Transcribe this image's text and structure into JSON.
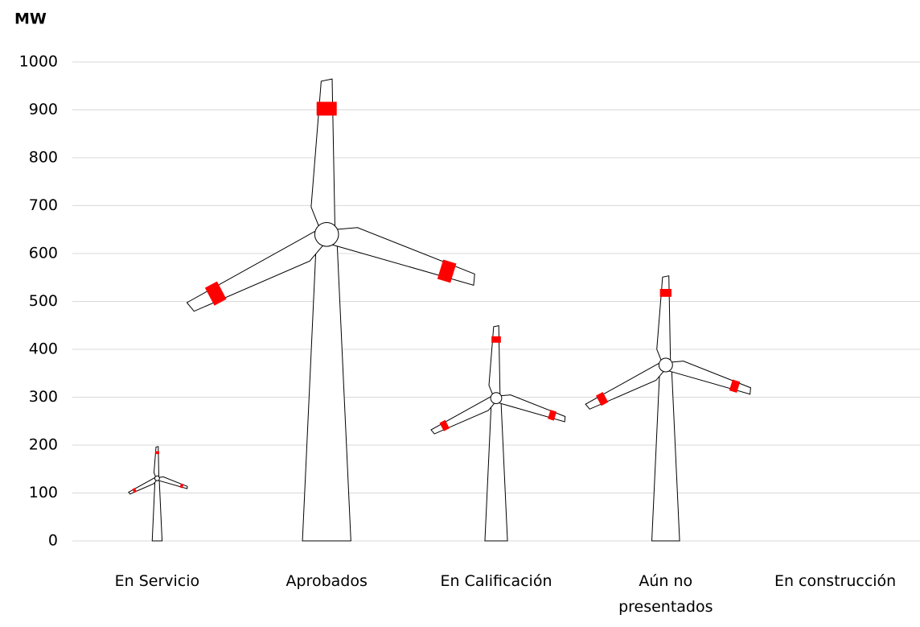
{
  "chart_data": {
    "type": "pictograph",
    "y_axis_label": "MW",
    "categories": [
      "En Servicio",
      "Aprobados",
      "En Calificación",
      "Aún no presentados",
      "En construcción"
    ],
    "values": [
      195,
      955,
      445,
      548,
      0
    ],
    "color": "#ff0000",
    "ylim": [
      0,
      1000
    ],
    "yticks": [
      0,
      100,
      200,
      300,
      400,
      500,
      600,
      700,
      800,
      900,
      1000
    ],
    "grid": true
  }
}
